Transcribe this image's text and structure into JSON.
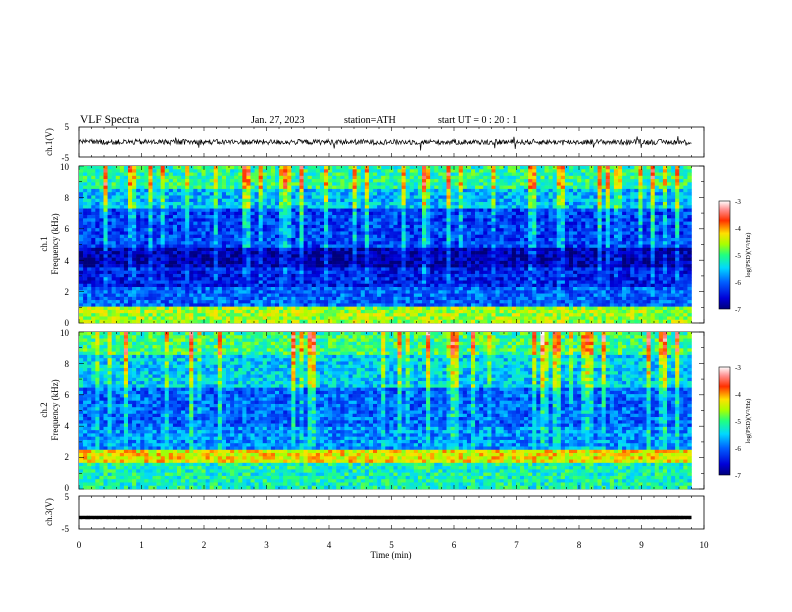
{
  "header": {
    "title": "VLF  Spectra",
    "date": "Jan. 27, 2023",
    "station": "station=ATH",
    "start": "start  UT  =   0 : 20 : 1"
  },
  "chart_data": [
    {
      "type": "line",
      "panel": "ch1-waveform",
      "ylabel": "ch.1(V)",
      "ylim": [
        -5,
        5
      ],
      "yticks": [
        "5",
        "-5"
      ],
      "x_range_min": [
        0,
        9.8
      ],
      "approx_level": 0,
      "color": "#000000"
    },
    {
      "type": "heatmap",
      "panel": "ch1-spectrogram",
      "ylabel_top": "ch.1",
      "ylabel": "Frequency  (kHz)",
      "ylim": [
        0,
        10
      ],
      "yticks": [
        "0",
        "2",
        "4",
        "6",
        "8",
        "10"
      ],
      "x_range_min": [
        0,
        9.8
      ],
      "colorbar": {
        "label": "log(PSD)(V²/Hz)",
        "range": [
          -7,
          -3
        ],
        "ticks": [
          "-3",
          "-4",
          "-5",
          "-6",
          "-7"
        ]
      },
      "bands_khz": [
        {
          "from": 8.6,
          "to": 10.0,
          "level": -5.1
        },
        {
          "from": 7.2,
          "to": 8.6,
          "level": -5.6
        },
        {
          "from": 4.8,
          "to": 7.2,
          "level": -6.2
        },
        {
          "from": 3.6,
          "to": 4.8,
          "level": -6.8
        },
        {
          "from": 2.2,
          "to": 3.6,
          "level": -6.4
        },
        {
          "from": 1.0,
          "to": 2.2,
          "level": -6.0
        },
        {
          "from": 0.0,
          "to": 1.0,
          "level": -4.6
        }
      ]
    },
    {
      "type": "heatmap",
      "panel": "ch2-spectrogram",
      "ylabel_top": "ch.2",
      "ylabel": "Frequency  (kHz)",
      "ylim": [
        0,
        10
      ],
      "yticks": [
        "0",
        "2",
        "4",
        "6",
        "8",
        "10"
      ],
      "x_range_min": [
        0,
        9.8
      ],
      "colorbar": {
        "label": "log(PSD)(V²/Hz)",
        "range": [
          -7,
          -3
        ],
        "ticks": [
          "-3",
          "-4",
          "-5",
          "-6",
          "-7"
        ]
      },
      "bands_khz": [
        {
          "from": 8.6,
          "to": 10.0,
          "level": -5.0
        },
        {
          "from": 6.5,
          "to": 8.6,
          "level": -5.5
        },
        {
          "from": 4.0,
          "to": 6.5,
          "level": -6.0
        },
        {
          "from": 2.4,
          "to": 4.0,
          "level": -5.8
        },
        {
          "from": 1.6,
          "to": 2.4,
          "level": -4.3
        },
        {
          "from": 0.0,
          "to": 1.6,
          "level": -5.2
        }
      ]
    },
    {
      "type": "line",
      "panel": "ch3-waveform",
      "ylabel": "ch.3(V)",
      "ylim": [
        -5,
        5
      ],
      "yticks": [
        "5",
        "-5"
      ],
      "x_range_min": [
        0,
        9.8
      ],
      "approx_level": -1.5,
      "color": "#000000"
    }
  ],
  "xaxis": {
    "label": "Time  (min)",
    "ticks": [
      "0",
      "1",
      "2",
      "3",
      "4",
      "5",
      "6",
      "7",
      "8",
      "9",
      "10"
    ],
    "range": [
      0,
      10
    ]
  }
}
